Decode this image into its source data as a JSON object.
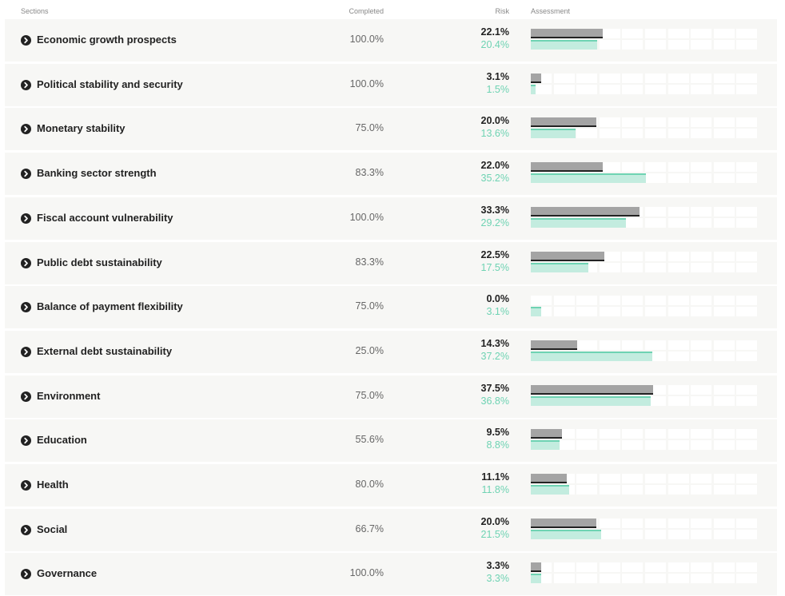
{
  "header": {
    "sections": "Sections",
    "completed": "Completed",
    "risk": "Risk",
    "assessment": "Assessment"
  },
  "colors": {
    "row_bg": "#f7f7f5",
    "primary_bar": "#a4a4a4",
    "primary_line": "#222222",
    "secondary_bar": "#c3ecdf",
    "secondary_line": "#6fd3b3",
    "secondary_text": "#6fd3b3"
  },
  "assessment_max_pct": 70,
  "rows": [
    {
      "label": "Economic growth prospects",
      "completed": "100.0%",
      "risk_main": "22.1%",
      "risk_alt": "20.4%",
      "main_value": 22.1,
      "alt_value": 20.4
    },
    {
      "label": "Political stability and security",
      "completed": "100.0%",
      "risk_main": "3.1%",
      "risk_alt": "1.5%",
      "main_value": 3.1,
      "alt_value": 1.5
    },
    {
      "label": "Monetary stability",
      "completed": "75.0%",
      "risk_main": "20.0%",
      "risk_alt": "13.6%",
      "main_value": 20.0,
      "alt_value": 13.6
    },
    {
      "label": "Banking sector strength",
      "completed": "83.3%",
      "risk_main": "22.0%",
      "risk_alt": "35.2%",
      "main_value": 22.0,
      "alt_value": 35.2
    },
    {
      "label": "Fiscal account vulnerability",
      "completed": "100.0%",
      "risk_main": "33.3%",
      "risk_alt": "29.2%",
      "main_value": 33.3,
      "alt_value": 29.2
    },
    {
      "label": "Public debt sustainability",
      "completed": "83.3%",
      "risk_main": "22.5%",
      "risk_alt": "17.5%",
      "main_value": 22.5,
      "alt_value": 17.5
    },
    {
      "label": "Balance of payment flexibility",
      "completed": "75.0%",
      "risk_main": "0.0%",
      "risk_alt": "3.1%",
      "main_value": 0.0,
      "alt_value": 3.1
    },
    {
      "label": "External debt sustainability",
      "completed": "25.0%",
      "risk_main": "14.3%",
      "risk_alt": "37.2%",
      "main_value": 14.3,
      "alt_value": 37.2
    },
    {
      "label": "Environment",
      "completed": "75.0%",
      "risk_main": "37.5%",
      "risk_alt": "36.8%",
      "main_value": 37.5,
      "alt_value": 36.8
    },
    {
      "label": "Education",
      "completed": "55.6%",
      "risk_main": "9.5%",
      "risk_alt": "8.8%",
      "main_value": 9.5,
      "alt_value": 8.8
    },
    {
      "label": "Health",
      "completed": "80.0%",
      "risk_main": "11.1%",
      "risk_alt": "11.8%",
      "main_value": 11.1,
      "alt_value": 11.8
    },
    {
      "label": "Social",
      "completed": "66.7%",
      "risk_main": "20.0%",
      "risk_alt": "21.5%",
      "main_value": 20.0,
      "alt_value": 21.5
    },
    {
      "label": "Governance",
      "completed": "100.0%",
      "risk_main": "3.3%",
      "risk_alt": "3.3%",
      "main_value": 3.3,
      "alt_value": 3.3
    }
  ]
}
